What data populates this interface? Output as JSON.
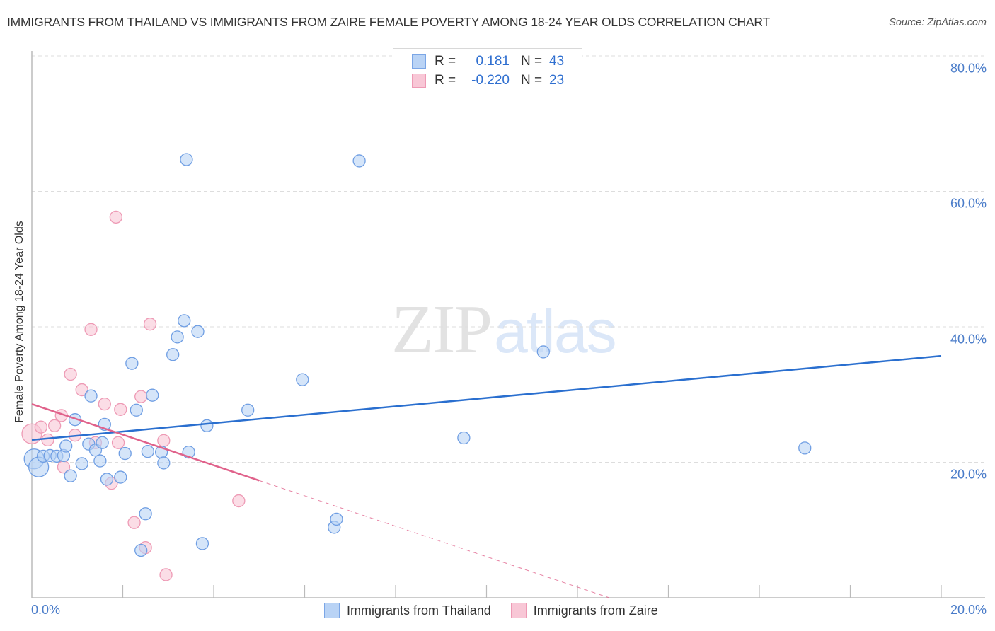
{
  "header": {
    "title": "IMMIGRANTS FROM THAILAND VS IMMIGRANTS FROM ZAIRE FEMALE POVERTY AMONG 18-24 YEAR OLDS CORRELATION CHART",
    "source": "Source: ZipAtlas.com"
  },
  "watermark": {
    "zip": "ZIP",
    "atlas": "atlas"
  },
  "axes": {
    "ylabel": "Female Poverty Among 18-24 Year Olds",
    "yticks": [
      "80.0%",
      "60.0%",
      "40.0%",
      "20.0%"
    ],
    "xticks": {
      "left": "0.0%",
      "right": "20.0%"
    }
  },
  "legend_top": {
    "rows": [
      {
        "r_label": "R =",
        "r_value": "0.181",
        "n_label": "N =",
        "n_value": "43"
      },
      {
        "r_label": "R =",
        "r_value": "-0.220",
        "n_label": "N =",
        "n_value": "23"
      }
    ]
  },
  "legend_bottom": {
    "items": [
      {
        "label": "Immigrants from Thailand"
      },
      {
        "label": "Immigrants from Zaire"
      }
    ]
  },
  "colors": {
    "thailand_fill": "#b9d3f5",
    "thailand_stroke": "#6f9ee3",
    "thailand_line": "#2a6fcf",
    "zaire_fill": "#f8c7d6",
    "zaire_stroke": "#ee9ab5",
    "zaire_line": "#e0628b",
    "tick_label": "#4a7cc9"
  },
  "chart_data": {
    "type": "scatter",
    "title": "Immigrants from Thailand vs Immigrants from Zaire Female Poverty Among 18-24 Year Olds Correlation Chart",
    "xlabel": "",
    "ylabel": "Female Poverty Among 18-24 Year Olds",
    "xlim": [
      0,
      20
    ],
    "ylim": [
      0,
      80
    ],
    "x_unit": "%",
    "y_unit": "%",
    "grid": {
      "horizontal": true,
      "vertical": false,
      "style": "dashed"
    },
    "legend_position": "bottom",
    "series": [
      {
        "name": "Immigrants from Thailand",
        "color": "#6f9ee3",
        "r": 0.181,
        "n": 43,
        "trendline": {
          "x": [
            0,
            20
          ],
          "y": [
            23.3,
            35.7
          ],
          "style": "solid"
        },
        "points": [
          [
            0.05,
            20.5,
            "large"
          ],
          [
            0.15,
            19.3,
            "large"
          ],
          [
            0.25,
            20.9
          ],
          [
            0.4,
            21.0
          ],
          [
            0.55,
            20.9
          ],
          [
            0.7,
            21.0
          ],
          [
            0.75,
            22.4
          ],
          [
            0.85,
            18.0
          ],
          [
            0.95,
            26.3
          ],
          [
            1.1,
            19.8
          ],
          [
            1.25,
            22.7
          ],
          [
            1.3,
            29.8
          ],
          [
            1.4,
            21.8
          ],
          [
            1.5,
            20.2
          ],
          [
            1.55,
            22.9
          ],
          [
            1.6,
            25.6
          ],
          [
            1.65,
            17.5
          ],
          [
            1.95,
            17.8
          ],
          [
            2.05,
            21.3
          ],
          [
            2.2,
            34.6
          ],
          [
            2.3,
            27.7
          ],
          [
            2.4,
            7.0
          ],
          [
            2.5,
            12.4
          ],
          [
            2.55,
            21.6
          ],
          [
            2.65,
            29.9
          ],
          [
            2.85,
            21.5
          ],
          [
            2.9,
            19.9
          ],
          [
            3.1,
            35.9
          ],
          [
            3.2,
            38.5
          ],
          [
            3.35,
            40.9
          ],
          [
            3.4,
            64.7
          ],
          [
            3.45,
            21.5
          ],
          [
            3.65,
            39.3
          ],
          [
            3.75,
            8.0
          ],
          [
            3.85,
            25.4
          ],
          [
            4.75,
            27.7
          ],
          [
            5.95,
            32.2
          ],
          [
            6.65,
            10.4
          ],
          [
            6.7,
            11.6
          ],
          [
            7.2,
            64.5
          ],
          [
            9.5,
            23.6
          ],
          [
            11.25,
            36.3
          ],
          [
            17.0,
            22.1
          ]
        ]
      },
      {
        "name": "Immigrants from Zaire",
        "color": "#ee9ab5",
        "r": -0.22,
        "n": 23,
        "trendline": {
          "x": [
            0,
            5.0
          ],
          "y": [
            28.6,
            17.3
          ],
          "style": "solid",
          "extended": {
            "x": [
              5.0,
              12.7
            ],
            "y": [
              17.3,
              0
            ],
            "style": "dashed"
          }
        },
        "points": [
          [
            0.0,
            24.2,
            "large"
          ],
          [
            0.2,
            25.2
          ],
          [
            0.35,
            23.3
          ],
          [
            0.5,
            25.4
          ],
          [
            0.65,
            26.9
          ],
          [
            0.7,
            19.3
          ],
          [
            0.85,
            33.0
          ],
          [
            0.95,
            24.0
          ],
          [
            1.1,
            30.7
          ],
          [
            1.3,
            39.6
          ],
          [
            1.4,
            22.9
          ],
          [
            1.6,
            28.6
          ],
          [
            1.75,
            16.9
          ],
          [
            1.85,
            56.2
          ],
          [
            1.95,
            27.8
          ],
          [
            2.25,
            11.1
          ],
          [
            2.4,
            29.7
          ],
          [
            2.5,
            7.4
          ],
          [
            2.6,
            40.4
          ],
          [
            2.95,
            3.4
          ],
          [
            2.9,
            23.2
          ],
          [
            4.55,
            14.3
          ],
          [
            1.9,
            22.9
          ]
        ]
      }
    ]
  }
}
